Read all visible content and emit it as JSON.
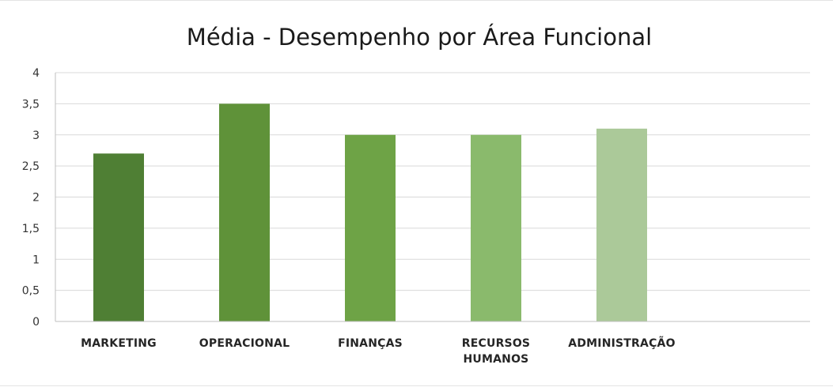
{
  "chart_data": {
    "type": "bar",
    "title": "Média - Desempenho por Área Funcional",
    "categories": [
      "MARKETING",
      "OPERACIONAL",
      "FINANÇAS",
      "RECURSOS HUMANOS",
      "ADMINISTRAÇÃO"
    ],
    "values": [
      2.7,
      3.5,
      3.0,
      3.0,
      3.1
    ],
    "colors": [
      "#4f7f34",
      "#5f9239",
      "#6ea346",
      "#8aba6c",
      "#abc999"
    ],
    "ylim": [
      0,
      4
    ],
    "yticks": [
      "0",
      "0,5",
      "1",
      "1,5",
      "2",
      "2,5",
      "3",
      "3,5",
      "4"
    ],
    "grid": true,
    "legend": "none"
  }
}
